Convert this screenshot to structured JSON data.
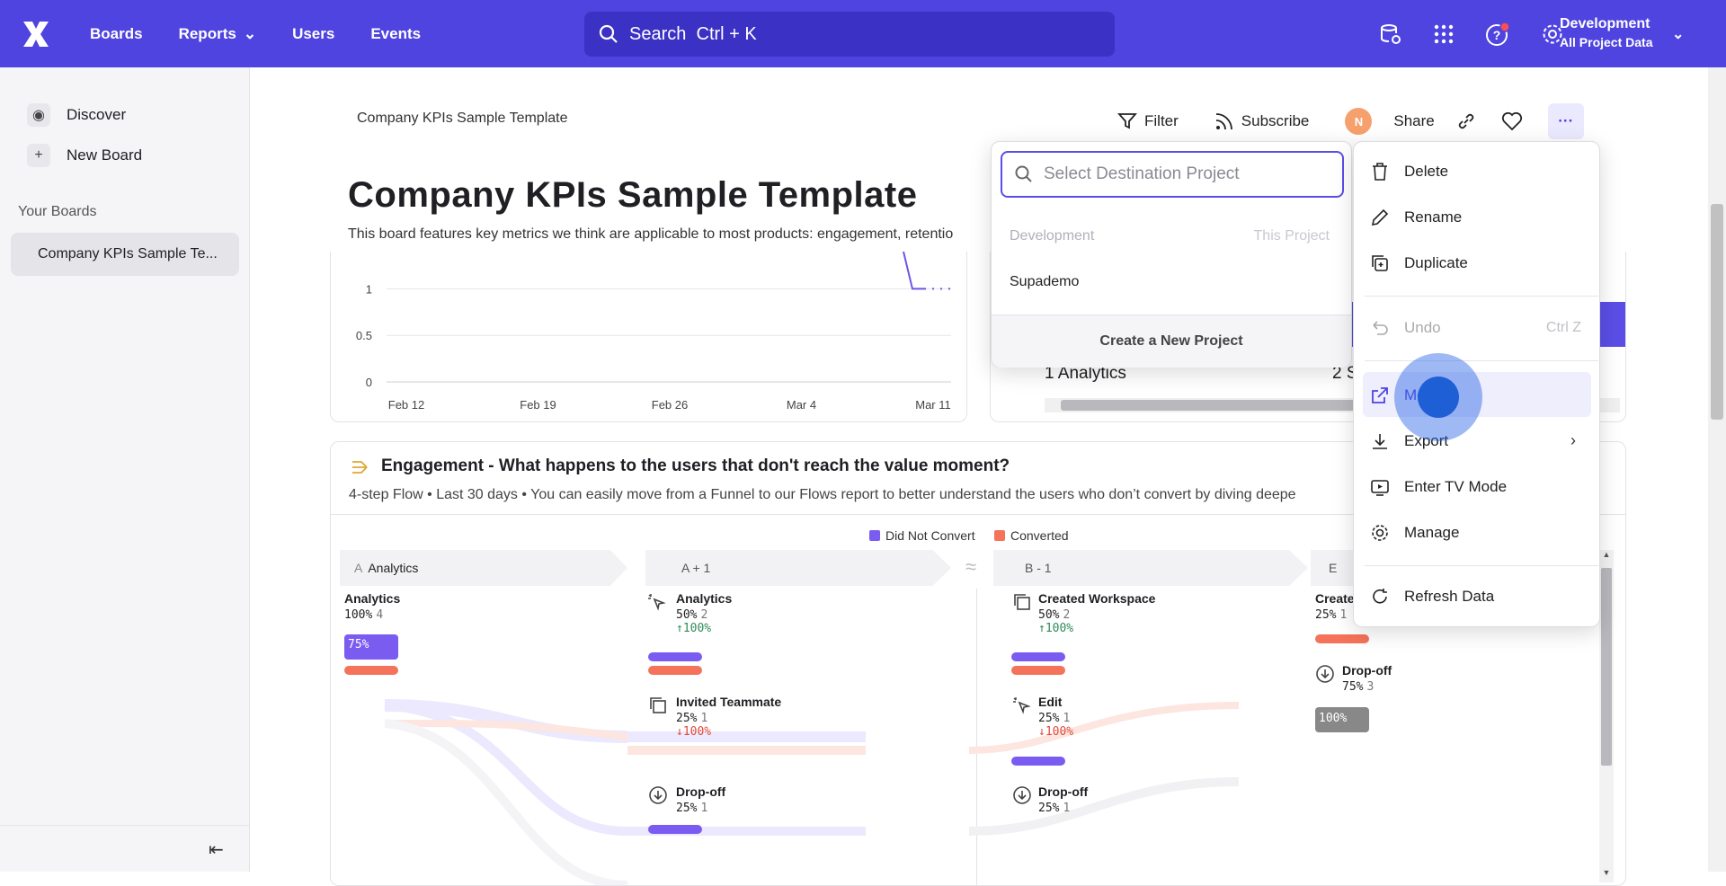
{
  "topbar": {
    "nav": [
      {
        "label": "Boards"
      },
      {
        "label": "Reports"
      },
      {
        "label": "Users"
      },
      {
        "label": "Events"
      }
    ],
    "search_label": "Search",
    "search_shortcut": "Ctrl + K",
    "project_name": "Development",
    "project_scope": "All Project Data"
  },
  "sidebar": {
    "discover": "Discover",
    "new_board": "New Board",
    "your_boards": "Your Boards",
    "board_item": "Company KPIs Sample Te..."
  },
  "board": {
    "breadcrumb": "Company KPIs Sample Template",
    "title": "Company KPIs Sample Template",
    "description": "This board features key metrics we think are applicable to most products: engagement, retentio",
    "toolbar": {
      "filter": "Filter",
      "subscribe": "Subscribe",
      "avatar": "N",
      "share": "Share"
    }
  },
  "chart_data": {
    "type": "line",
    "title": "",
    "xlabel": "",
    "ylabel": "",
    "x_ticks": [
      "Feb 12",
      "Feb 19",
      "Feb 26",
      "Mar 4",
      "Mar 11"
    ],
    "y_ticks": [
      "1",
      "0.5",
      "0"
    ],
    "ylim": [
      0,
      1.4
    ],
    "series": [
      {
        "x": [
          "Mar 9",
          "Mar 9.5",
          "Mar 11"
        ],
        "values": [
          1.4,
          1,
          1
        ]
      }
    ],
    "legend": "none",
    "grid": true
  },
  "right_card": {
    "row1": "1 Analytics",
    "row2": "2 S"
  },
  "flow": {
    "title": "Engagement - What happens to the users that don't reach the value moment?",
    "subtitle": "4-step Flow • Last 30 days • You can easily move from a Funnel to our Flows report to better understand the users who don’t convert by diving deepe",
    "legend": [
      {
        "label": "Did Not Convert",
        "color": "#7b5cf0"
      },
      {
        "label": "Converted",
        "color": "#f4735a"
      }
    ],
    "steps": [
      "Analytics",
      "A + 1",
      "B - 1",
      "E"
    ],
    "step_prefix": "A",
    "col0": {
      "name": "Analytics",
      "pct": "100%",
      "count": "4",
      "badge": "75%"
    },
    "col1": [
      {
        "name": "Analytics",
        "pct": "50%",
        "count": "2",
        "delta": "↑100%"
      },
      {
        "name": "Invited Teammate",
        "pct": "25%",
        "count": "1",
        "delta": "↓100%"
      },
      {
        "name": "Drop-off",
        "pct": "25%",
        "count": "1"
      }
    ],
    "col2": [
      {
        "name": "Created Workspace",
        "pct": "50%",
        "count": "2",
        "delta": "↑100%"
      },
      {
        "name": "Edit",
        "pct": "25%",
        "count": "1",
        "delta": "↓100%"
      },
      {
        "name": "Drop-off",
        "pct": "25%",
        "count": "1"
      }
    ],
    "col3": [
      {
        "name": "Create",
        "pct": "25%",
        "count": "1"
      },
      {
        "name": "Drop-off",
        "pct": "75%",
        "count": "3",
        "badge": "100%"
      }
    ]
  },
  "project_picker": {
    "placeholder": "Select Destination Project",
    "current": "Development",
    "current_tag": "This Project",
    "other": "Supademo",
    "create": "Create a New Project"
  },
  "menu": {
    "delete": "Delete",
    "rename": "Rename",
    "duplicate": "Duplicate",
    "undo": "Undo",
    "undo_shortcut": "Ctrl Z",
    "move": "Mo",
    "export": "Export",
    "tv": "Enter TV Mode",
    "manage": "Manage",
    "refresh": "Refresh Data"
  }
}
